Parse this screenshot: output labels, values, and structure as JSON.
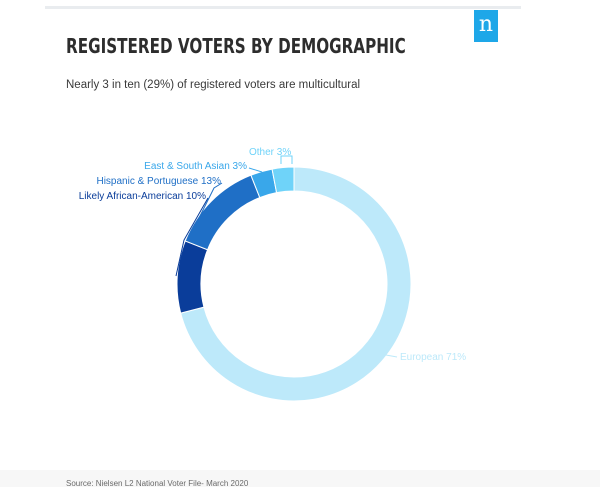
{
  "brand": {
    "logo_letter": "n",
    "logo_color": "#1ea7e8"
  },
  "title": "REGISTERED VOTERS BY DEMOGRAPHIC",
  "subtitle": "Nearly 3 in ten (29%) of registered voters are multicultural",
  "source": "Source:  Nielsen L2 National Voter File- March 2020",
  "chart_data": {
    "type": "pie",
    "style": "donut",
    "slices": [
      {
        "label": "European 71%",
        "value": 71,
        "color": "#bde9fa",
        "label_color": "#bde9fa"
      },
      {
        "label": "Likely African-American 10%",
        "value": 10,
        "color": "#0a3d9a",
        "label_color": "#0a3d9a"
      },
      {
        "label": "Hispanic & Portuguese 13%",
        "value": 13,
        "color": "#1f6fc6",
        "label_color": "#1f6fc6"
      },
      {
        "label": "East & South Asian 3%",
        "value": 3,
        "color": "#39a7ea",
        "label_color": "#39a7ea"
      },
      {
        "label": "Other 3%",
        "value": 3,
        "color": "#6fd3f9",
        "label_color": "#6fd3f9"
      }
    ],
    "legend": "none"
  }
}
